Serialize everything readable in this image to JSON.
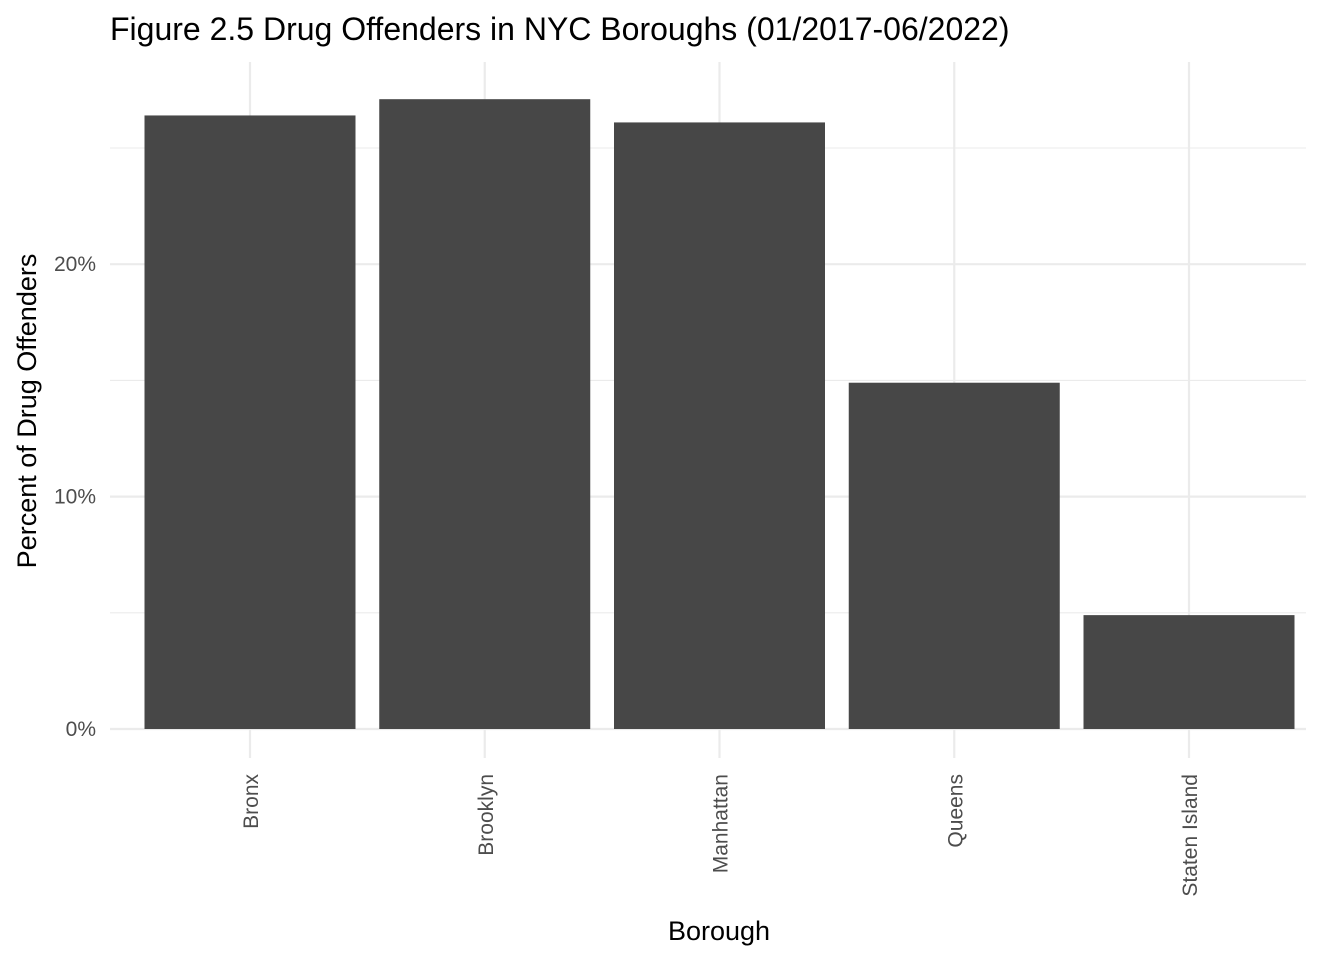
{
  "chart_data": {
    "type": "bar",
    "title": "Figure 2.5 Drug Offenders in NYC Boroughs (01/2017-06/2022)",
    "xlabel": "Borough",
    "ylabel": "Percent of Drug Offenders",
    "categories": [
      "Bronx",
      "Brooklyn",
      "Manhattan",
      "Queens",
      "Staten Island"
    ],
    "values": [
      26.4,
      27.1,
      26.1,
      14.9,
      4.9
    ],
    "value_unit": "percent",
    "ylim": [
      0,
      28.7
    ],
    "yticks": [
      0,
      10,
      20
    ],
    "ytick_labels": [
      "0%",
      "10%",
      "20%"
    ],
    "grid": true,
    "bar_color": "#474747",
    "grid_color": "#ebebeb",
    "background": "#ffffff"
  }
}
